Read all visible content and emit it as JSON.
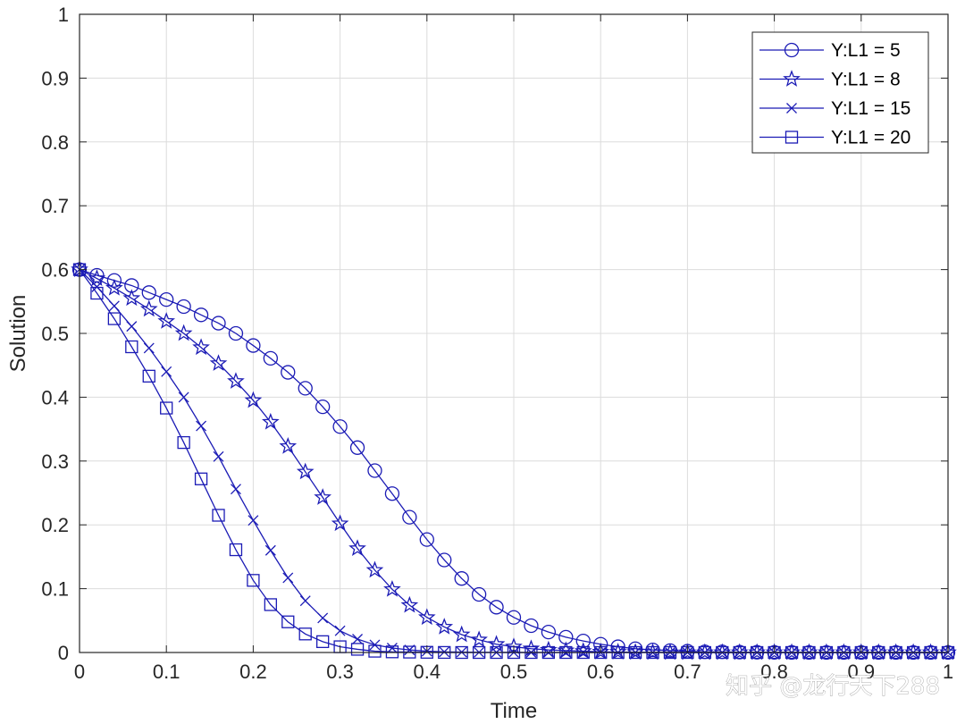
{
  "chart_data": {
    "type": "line",
    "title": "",
    "xlabel": "Time",
    "ylabel": "Solution",
    "xlim": [
      0,
      1
    ],
    "ylim": [
      0,
      1
    ],
    "grid": true,
    "legend_position": "top-right",
    "xticks": [
      "0",
      "0.1",
      "0.2",
      "0.3",
      "0.4",
      "0.5",
      "0.6",
      "0.7",
      "0.8",
      "0.9",
      "1"
    ],
    "yticks": [
      "0",
      "0.1",
      "0.2",
      "0.3",
      "0.4",
      "0.5",
      "0.6",
      "0.7",
      "0.8",
      "0.9",
      "1"
    ],
    "line_color": "#1b1bb5",
    "x": [
      0,
      0.02,
      0.04,
      0.06,
      0.08,
      0.1,
      0.12,
      0.14,
      0.16,
      0.18,
      0.2,
      0.22,
      0.24,
      0.26,
      0.28,
      0.3,
      0.32,
      0.34,
      0.36,
      0.38,
      0.4,
      0.42,
      0.44,
      0.46,
      0.48,
      0.5,
      0.52,
      0.54,
      0.56,
      0.58,
      0.6,
      0.62,
      0.64,
      0.66,
      0.68,
      0.7,
      0.72,
      0.74,
      0.76,
      0.78,
      0.8,
      0.82,
      0.84,
      0.86,
      0.88,
      0.9,
      0.92,
      0.94,
      0.96,
      0.98,
      1
    ],
    "series": [
      {
        "name": "Y:L1 = 5",
        "marker": "circle",
        "values": [
          0.6,
          0.591,
          0.583,
          0.575,
          0.564,
          0.553,
          0.542,
          0.529,
          0.516,
          0.5,
          0.481,
          0.461,
          0.439,
          0.414,
          0.385,
          0.354,
          0.321,
          0.285,
          0.249,
          0.212,
          0.177,
          0.145,
          0.116,
          0.091,
          0.071,
          0.055,
          0.042,
          0.032,
          0.024,
          0.018,
          0.013,
          0.009,
          0.006,
          0.004,
          0.003,
          0.002,
          0.001,
          0.001,
          0.0005,
          0.0003,
          0.0002,
          0.0001,
          0,
          0,
          0,
          0,
          0,
          0,
          0,
          0,
          0
        ]
      },
      {
        "name": "Y:L1 = 8",
        "marker": "star",
        "values": [
          0.6,
          0.586,
          0.571,
          0.555,
          0.538,
          0.519,
          0.5,
          0.478,
          0.453,
          0.425,
          0.395,
          0.361,
          0.323,
          0.283,
          0.243,
          0.202,
          0.163,
          0.129,
          0.099,
          0.074,
          0.055,
          0.04,
          0.028,
          0.02,
          0.013,
          0.009,
          0.006,
          0.004,
          0.003,
          0.002,
          0.001,
          0.0007,
          0.0004,
          0.0002,
          0.0001,
          0,
          0,
          0,
          0,
          0,
          0,
          0,
          0,
          0,
          0,
          0,
          0,
          0,
          0,
          0,
          0
        ]
      },
      {
        "name": "Y:L1 = 15",
        "marker": "x",
        "values": [
          0.6,
          0.573,
          0.543,
          0.511,
          0.477,
          0.44,
          0.4,
          0.355,
          0.307,
          0.256,
          0.207,
          0.16,
          0.117,
          0.081,
          0.054,
          0.034,
          0.021,
          0.012,
          0.007,
          0.004,
          0.002,
          0.001,
          0.0006,
          0.0003,
          0.0002,
          0.0001,
          0,
          0,
          0,
          0,
          0,
          0,
          0,
          0,
          0,
          0,
          0,
          0,
          0,
          0,
          0,
          0,
          0,
          0,
          0,
          0,
          0,
          0,
          0,
          0,
          0
        ]
      },
      {
        "name": "Y:L1 = 20",
        "marker": "square",
        "values": [
          0.6,
          0.563,
          0.523,
          0.479,
          0.433,
          0.383,
          0.329,
          0.272,
          0.215,
          0.161,
          0.113,
          0.075,
          0.048,
          0.029,
          0.017,
          0.009,
          0.005,
          0.002,
          0.001,
          0.0006,
          0.0003,
          0.0001,
          0,
          0,
          0,
          0,
          0,
          0,
          0,
          0,
          0,
          0,
          0,
          0,
          0,
          0,
          0,
          0,
          0,
          0,
          0,
          0,
          0,
          0,
          0,
          0,
          0,
          0,
          0,
          0,
          0
        ]
      }
    ]
  },
  "watermark": "知乎 @龙行天下288"
}
